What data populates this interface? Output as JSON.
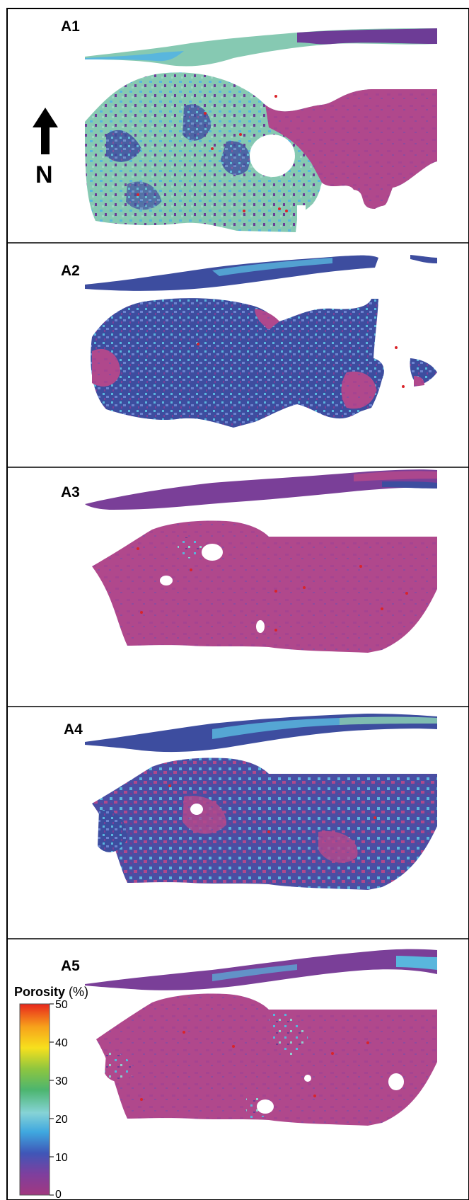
{
  "panels": [
    {
      "label": "A1",
      "style": "green"
    },
    {
      "label": "A2",
      "style": "blue"
    },
    {
      "label": "A3",
      "style": "magenta"
    },
    {
      "label": "A4",
      "style": "mixed"
    },
    {
      "label": "A5",
      "style": "magenta-cyan"
    }
  ],
  "north_arrow": {
    "letter": "N",
    "icon": "north-arrow-icon"
  },
  "legend": {
    "title_bold": "Porosity",
    "title_unit": " (%)",
    "ticks": [
      "50",
      "40",
      "30",
      "20",
      "10",
      "0"
    ],
    "tick_values": [
      50,
      40,
      30,
      20,
      10,
      0
    ],
    "range": [
      0,
      50
    ],
    "colors": [
      "#a2387f",
      "#7e3f9e",
      "#3f57b8",
      "#3fa8df",
      "#86d3d6",
      "#4cb56f",
      "#8ec63f",
      "#f7e01d",
      "#f7a21b",
      "#e8261c"
    ]
  },
  "colors": {
    "magenta": "#b0488c",
    "purple": "#6d3c96",
    "blue": "#3d4d9f",
    "lightblue": "#59b6dd",
    "green": "#86c9b2",
    "well": "#d9242a"
  }
}
